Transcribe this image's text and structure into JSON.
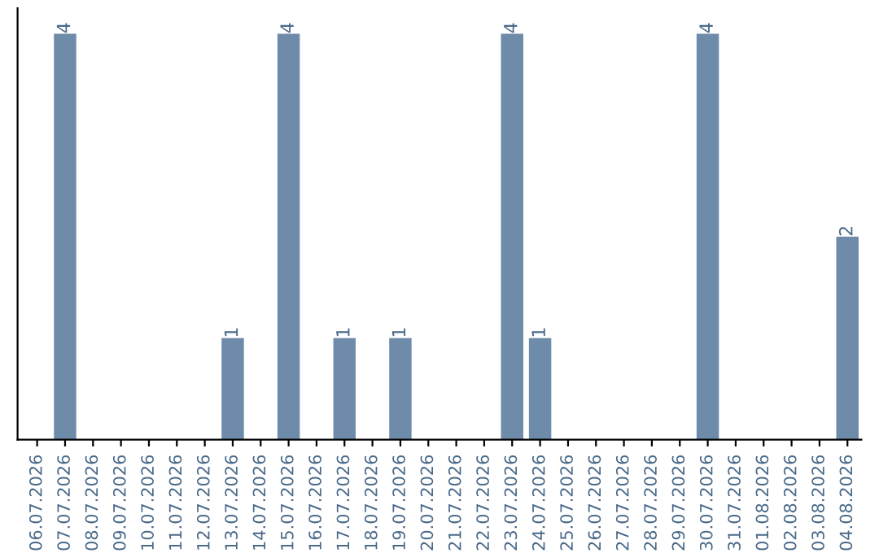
{
  "chart_data": {
    "type": "bar",
    "categories": [
      "06.07.2026",
      "07.07.2026",
      "08.07.2026",
      "09.07.2026",
      "10.07.2026",
      "11.07.2026",
      "12.07.2026",
      "13.07.2026",
      "14.07.2026",
      "15.07.2026",
      "16.07.2026",
      "17.07.2026",
      "18.07.2026",
      "19.07.2026",
      "20.07.2026",
      "21.07.2026",
      "22.07.2026",
      "23.07.2026",
      "24.07.2026",
      "25.07.2026",
      "26.07.2026",
      "27.07.2026",
      "28.07.2026",
      "29.07.2026",
      "30.07.2026",
      "31.07.2026",
      "01.08.2026",
      "02.08.2026",
      "03.08.2026",
      "04.08.2026"
    ],
    "values": [
      0,
      4,
      0,
      0,
      0,
      0,
      0,
      1,
      0,
      4,
      0,
      1,
      0,
      1,
      0,
      0,
      0,
      4,
      1,
      0,
      0,
      0,
      0,
      0,
      4,
      0,
      0,
      0,
      0,
      2
    ],
    "value_labels": [
      null,
      "4",
      null,
      null,
      null,
      null,
      null,
      "1",
      null,
      "4",
      null,
      "1",
      null,
      "1",
      null,
      null,
      null,
      "4",
      "1",
      null,
      null,
      null,
      null,
      null,
      "4",
      null,
      null,
      null,
      null,
      "2"
    ],
    "color": "#6e8caa",
    "ylim": [
      0,
      4.25
    ],
    "tick_labels": "x",
    "grid": false,
    "legend": false
  }
}
